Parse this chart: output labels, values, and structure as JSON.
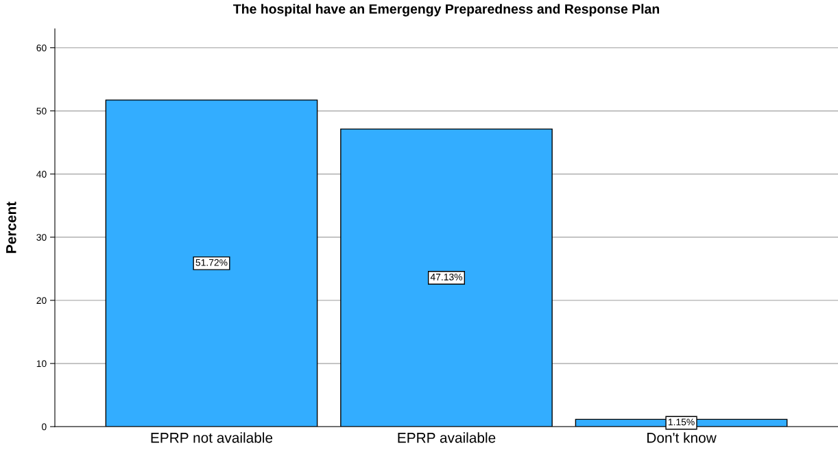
{
  "chart_data": {
    "type": "bar",
    "title": "The hospital have an Emergengy Preparedness and Response Plan",
    "ylabel": "Percent",
    "categories": [
      "EPRP not available",
      "EPRP available",
      "Don't know"
    ],
    "values": [
      51.72,
      47.13,
      1.15
    ],
    "value_labels": [
      "51.72%",
      "47.13%",
      "1.15%"
    ],
    "color": "#33adff",
    "ylim": [
      0,
      63
    ],
    "yticks": [
      0,
      10,
      20,
      30,
      40,
      50,
      60
    ],
    "grid": "y",
    "legend": false
  }
}
